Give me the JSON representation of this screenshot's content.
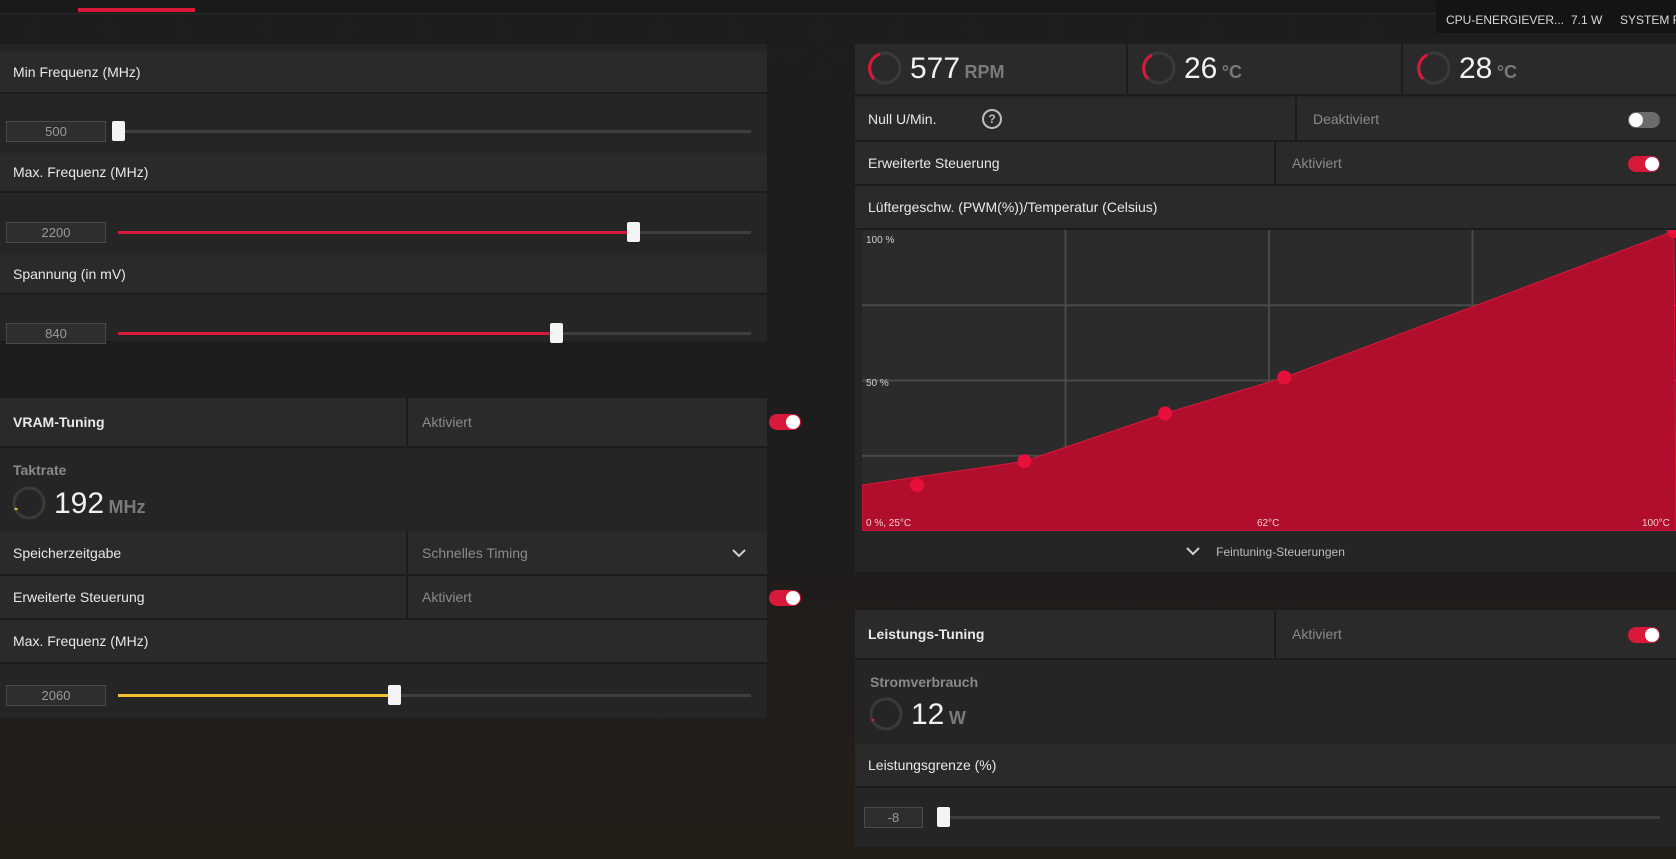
{
  "colors": {
    "accent": "#d9193a",
    "vram": "#f2c12e",
    "panel": "#252525"
  },
  "metrics": {
    "cpu_label": "CPU-ENERGIEVER...",
    "cpu_value": "7.1 W",
    "system_label": "SYSTEM R"
  },
  "gpu": {
    "min_freq": {
      "label": "Min Frequenz (MHz)",
      "value": "500",
      "level": 0.0
    },
    "max_freq": {
      "label": "Max. Frequenz (MHz)",
      "value": "2200",
      "level": 0.81
    },
    "voltage": {
      "label": "Spannung (in mV)",
      "value": "840",
      "level": 0.69
    }
  },
  "vram": {
    "title": "VRAM-Tuning",
    "status": "Aktiviert",
    "clock_label": "Taktrate",
    "clock_value": "192",
    "clock_unit": "MHz",
    "timing_label": "Speicherzeitgabe",
    "timing_value": "Schnelles Timing",
    "advanced_label": "Erweiterte Steuerung",
    "advanced_status": "Aktiviert",
    "max_freq_label": "Max. Frequenz (MHz)",
    "max_freq_value": "2060",
    "max_freq_level": 0.4
  },
  "fan": {
    "rpm_value": "577",
    "rpm_unit": "RPM",
    "temp1_value": "26",
    "temp1_unit": "°C",
    "temp2_value": "28",
    "temp2_unit": "°C",
    "zero_rpm_label": "Null U/Min.",
    "zero_rpm_status": "Deaktiviert",
    "advanced_label": "Erweiterte Steuerung",
    "advanced_status": "Aktiviert",
    "curve_title": "Lüftergeschw. (PWM(%))/Temperatur (Celsius)",
    "fine_tuning_label": "Feintuning-Steuerungen"
  },
  "chart_data": {
    "type": "area",
    "title": "Lüftergeschw. (PWM(%))/Temperatur (Celsius)",
    "xlabel": "",
    "ylabel": "",
    "x": [
      25,
      40,
      53,
      64,
      100
    ],
    "series": [
      {
        "values": [
          15,
          23,
          39,
          51,
          100
        ]
      }
    ],
    "xlim": [
      25,
      100
    ],
    "ylim": [
      0,
      100
    ],
    "tick_labels": {
      "y_top": "100 %",
      "y_mid": "50 %",
      "origin": "0 %, 25°C",
      "x_mid": "62°C",
      "x_max": "100°C"
    },
    "grid": true
  },
  "power": {
    "title": "Leistungs-Tuning",
    "status": "Aktiviert",
    "usage_label": "Stromverbrauch",
    "usage_value": "12",
    "usage_unit": "W",
    "limit_label": "Leistungsgrenze (%)",
    "limit_value": "-8",
    "limit_level": 0.0
  }
}
